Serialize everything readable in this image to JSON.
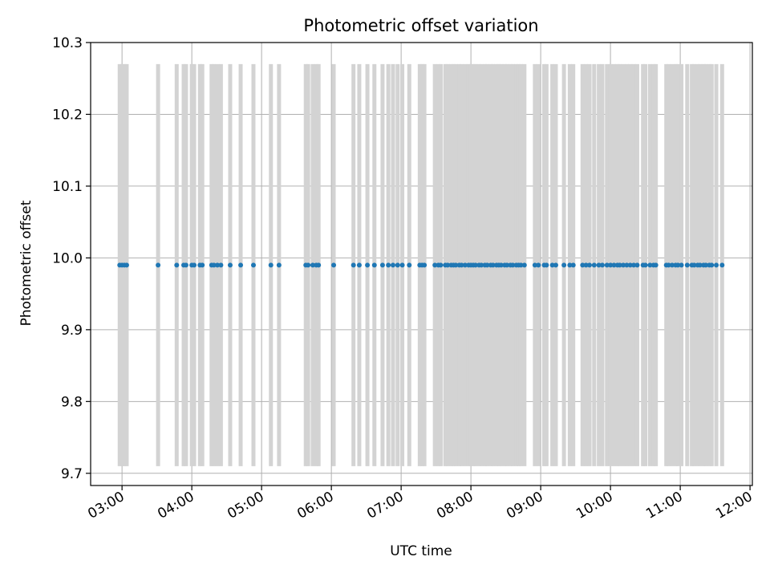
{
  "chart_data": {
    "type": "scatter",
    "title": "Photometric offset variation",
    "xlabel": "UTC time",
    "ylabel": "Photometric offset",
    "x_tick_labels": [
      "03:00",
      "04:00",
      "05:00",
      "06:00",
      "07:00",
      "08:00",
      "09:00",
      "10:00",
      "11:00",
      "12:00"
    ],
    "y_tick_labels": [
      "9.7",
      "9.8",
      "9.9",
      "10.0",
      "10.1",
      "10.2",
      "10.3"
    ],
    "xlim": [
      "02:33",
      "12:02"
    ],
    "ylim": [
      9.683,
      10.3
    ],
    "grid": true,
    "error_bar_range": [
      9.71,
      10.27
    ],
    "colors": {
      "points": "#1f77b4",
      "error_bars": "#d3d3d3",
      "grid": "#b0b0b0"
    },
    "series": [
      {
        "y_value": 9.99,
        "x": [
          "02:58",
          "03:00",
          "03:02",
          "03:04",
          "03:31",
          "03:47",
          "03:53",
          "03:55",
          "04:00",
          "04:02",
          "04:07",
          "04:09",
          "04:17",
          "04:19",
          "04:22",
          "04:25",
          "04:33",
          "04:42",
          "04:53",
          "05:08",
          "05:15",
          "05:38",
          "05:40",
          "05:44",
          "05:47",
          "05:49",
          "06:02",
          "06:19",
          "06:24",
          "06:31",
          "06:37",
          "06:44",
          "06:49",
          "06:53",
          "06:57",
          "07:01",
          "07:07",
          "07:16",
          "07:18",
          "07:20",
          "07:29",
          "07:32",
          "07:34",
          "07:38",
          "07:40",
          "07:43",
          "07:45",
          "07:47",
          "07:50",
          "07:52",
          "07:55",
          "07:58",
          "08:00",
          "08:02",
          "08:04",
          "08:07",
          "08:09",
          "08:12",
          "08:14",
          "08:17",
          "08:19",
          "08:22",
          "08:24",
          "08:26",
          "08:29",
          "08:31",
          "08:34",
          "08:36",
          "08:39",
          "08:41",
          "08:43",
          "08:46",
          "08:55",
          "08:58",
          "09:03",
          "09:05",
          "09:10",
          "09:13",
          "09:20",
          "09:25",
          "09:28",
          "09:36",
          "09:39",
          "09:42",
          "09:46",
          "09:50",
          "09:53",
          "09:57",
          "10:00",
          "10:03",
          "10:06",
          "10:08",
          "10:11",
          "10:14",
          "10:17",
          "10:20",
          "10:23",
          "10:28",
          "10:30",
          "10:34",
          "10:37",
          "10:39",
          "10:48",
          "10:50",
          "10:53",
          "10:56",
          "10:58",
          "11:01",
          "11:06",
          "11:10",
          "11:12",
          "11:15",
          "11:17",
          "11:20",
          "11:22",
          "11:25",
          "11:27",
          "11:31",
          "11:36"
        ]
      }
    ]
  }
}
